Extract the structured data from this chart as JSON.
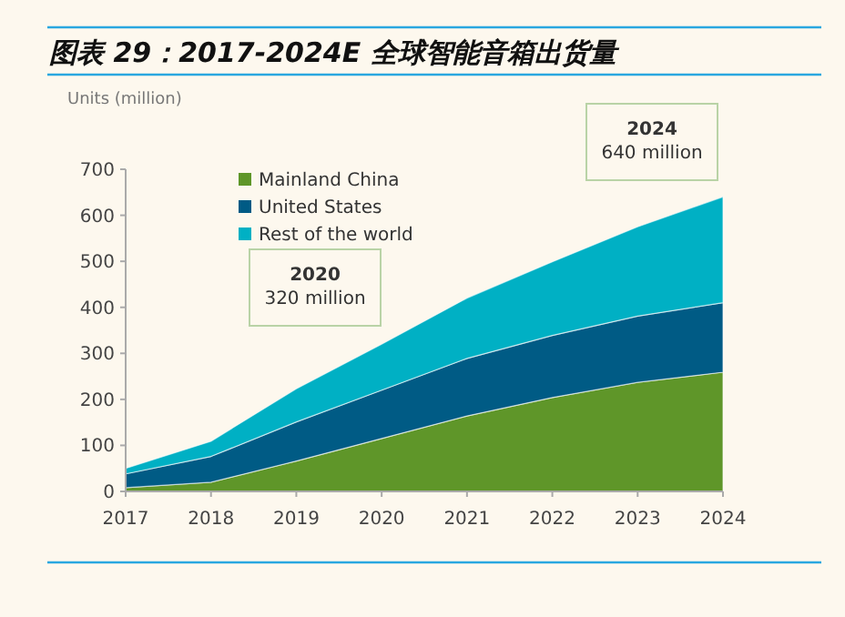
{
  "chart_data": {
    "type": "area",
    "title": "图表 29：2017-2024E 全球智能音箱出货量",
    "ylabel": "Units (million)",
    "x": [
      2017,
      2018,
      2019,
      2020,
      2021,
      2022,
      2023,
      2024
    ],
    "xlim": [
      2017,
      2024
    ],
    "xticks": [
      2017,
      2018,
      2019,
      2020,
      2021,
      2022,
      2023,
      2024
    ],
    "ylim": [
      0,
      700
    ],
    "yticks": [
      0,
      100,
      200,
      300,
      400,
      500,
      600,
      700
    ],
    "stacked": true,
    "legend": "top left",
    "series": [
      {
        "name": "Mainland China",
        "color": "#5f9629",
        "values": [
          8,
          20,
          66,
          115,
          164,
          204,
          237,
          259
        ]
      },
      {
        "name": "United States",
        "color": "#005b85",
        "values": [
          30,
          56,
          85,
          105,
          125,
          135,
          144,
          151
        ]
      },
      {
        "name": "Rest of the world",
        "color": "#00b0c4",
        "values": [
          12,
          33,
          72,
          100,
          131,
          160,
          194,
          230
        ]
      }
    ],
    "annotations": [
      "**2020**\n320 million",
      "**2024**\n640 million"
    ]
  }
}
